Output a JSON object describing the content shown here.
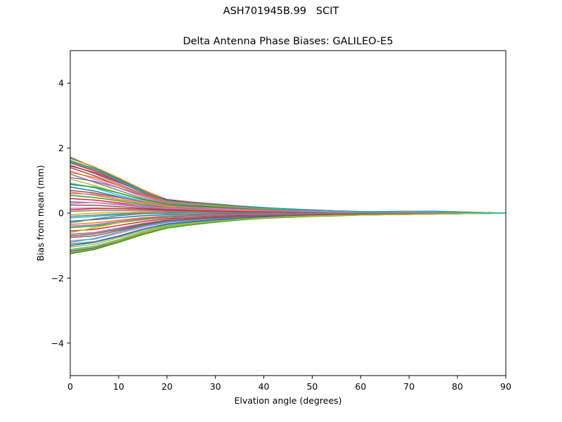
{
  "figure": {
    "suptitle": "ASH701945B.99   SCIT"
  },
  "chart_data": {
    "type": "line",
    "title": "Delta Antenna Phase Biases: GALILEO-E5",
    "xlabel": "Elvation angle (degrees)",
    "ylabel": "Bias from mean (mm)",
    "xlim": [
      0,
      90
    ],
    "ylim": [
      -5,
      5
    ],
    "xticks": [
      0,
      10,
      20,
      30,
      40,
      50,
      60,
      70,
      80,
      90
    ],
    "yticks": [
      -4,
      -2,
      0,
      2,
      4
    ],
    "ytick_labels": [
      "−4",
      "−2",
      "0",
      "2",
      "4"
    ],
    "grid": false,
    "legend": "none",
    "colors": [
      "#1f77b4",
      "#ff7f0e",
      "#2ca02c",
      "#d62728",
      "#9467bd",
      "#8c564b",
      "#e377c2",
      "#7f7f7f",
      "#bcbd22",
      "#17becf"
    ],
    "x": [
      0,
      5,
      10,
      15,
      20,
      25,
      30,
      35,
      40,
      45,
      50,
      55,
      60,
      65,
      70,
      75,
      80,
      85,
      90
    ],
    "series": [
      {
        "values": [
          1.72,
          1.4,
          1.05,
          0.7,
          0.42,
          0.34,
          0.28,
          0.22,
          0.17,
          0.13,
          0.1,
          0.07,
          0.05,
          0.05,
          0.06,
          0.06,
          0.04,
          0.02,
          0.0
        ]
      },
      {
        "values": [
          1.68,
          1.42,
          1.08,
          0.72,
          0.4,
          0.33,
          0.27,
          0.21,
          0.16,
          0.12,
          0.09,
          0.07,
          0.05,
          0.05,
          0.06,
          0.05,
          0.04,
          0.02,
          0.0
        ]
      },
      {
        "values": [
          1.62,
          1.36,
          1.02,
          0.66,
          0.38,
          0.31,
          0.26,
          0.2,
          0.16,
          0.12,
          0.09,
          0.06,
          0.04,
          0.05,
          0.05,
          0.05,
          0.03,
          0.01,
          0.0
        ]
      },
      {
        "values": [
          1.55,
          1.3,
          0.98,
          0.62,
          0.36,
          0.3,
          0.24,
          0.19,
          0.15,
          0.11,
          0.08,
          0.06,
          0.04,
          0.04,
          0.05,
          0.05,
          0.03,
          0.01,
          0.0
        ]
      },
      {
        "values": [
          1.48,
          1.22,
          0.9,
          0.58,
          0.34,
          0.28,
          0.23,
          0.18,
          0.14,
          0.1,
          0.08,
          0.06,
          0.04,
          0.04,
          0.05,
          0.04,
          0.03,
          0.01,
          0.0
        ]
      },
      {
        "values": [
          1.4,
          1.15,
          0.85,
          0.55,
          0.32,
          0.27,
          0.22,
          0.17,
          0.13,
          0.1,
          0.07,
          0.05,
          0.03,
          0.04,
          0.04,
          0.04,
          0.03,
          0.01,
          0.0
        ]
      },
      {
        "values": [
          1.3,
          1.05,
          0.78,
          0.5,
          0.3,
          0.25,
          0.2,
          0.16,
          0.12,
          0.09,
          0.07,
          0.05,
          0.03,
          0.03,
          0.04,
          0.04,
          0.02,
          0.01,
          0.0
        ]
      },
      {
        "values": [
          1.2,
          0.95,
          0.7,
          0.45,
          0.28,
          0.23,
          0.19,
          0.15,
          0.11,
          0.08,
          0.06,
          0.04,
          0.03,
          0.03,
          0.04,
          0.03,
          0.02,
          0.01,
          0.0
        ]
      },
      {
        "values": [
          1.05,
          0.85,
          0.62,
          0.4,
          0.25,
          0.21,
          0.17,
          0.13,
          0.1,
          0.08,
          0.06,
          0.04,
          0.03,
          0.03,
          0.03,
          0.03,
          0.02,
          0.01,
          0.0
        ]
      },
      {
        "values": [
          0.92,
          0.78,
          0.55,
          0.36,
          0.22,
          0.19,
          0.15,
          0.12,
          0.09,
          0.07,
          0.05,
          0.04,
          0.02,
          0.03,
          0.03,
          0.03,
          0.02,
          0.01,
          0.0
        ]
      },
      {
        "values": [
          0.8,
          0.68,
          0.5,
          0.33,
          0.2,
          0.17,
          0.14,
          0.11,
          0.08,
          0.06,
          0.05,
          0.03,
          0.02,
          0.02,
          0.03,
          0.02,
          0.02,
          0.0,
          0.0
        ]
      },
      {
        "values": [
          0.65,
          0.55,
          0.42,
          0.3,
          0.18,
          0.15,
          0.12,
          0.1,
          0.07,
          0.06,
          0.04,
          0.03,
          0.02,
          0.02,
          0.02,
          0.02,
          0.01,
          0.0,
          0.0
        ]
      },
      {
        "values": [
          0.55,
          0.48,
          0.38,
          0.26,
          0.16,
          0.14,
          0.11,
          0.09,
          0.07,
          0.05,
          0.04,
          0.03,
          0.02,
          0.02,
          0.02,
          0.02,
          0.01,
          0.0,
          0.0
        ]
      },
      {
        "values": [
          0.45,
          0.4,
          0.32,
          0.22,
          0.14,
          0.12,
          0.1,
          0.08,
          0.06,
          0.05,
          0.04,
          0.02,
          0.01,
          0.02,
          0.02,
          0.02,
          0.01,
          0.0,
          0.0
        ]
      },
      {
        "values": [
          0.35,
          0.32,
          0.26,
          0.19,
          0.12,
          0.1,
          0.08,
          0.07,
          0.05,
          0.04,
          0.03,
          0.02,
          0.01,
          0.01,
          0.02,
          0.01,
          0.01,
          0.0,
          0.0
        ]
      },
      {
        "values": [
          0.25,
          0.24,
          0.2,
          0.15,
          0.1,
          0.09,
          0.07,
          0.06,
          0.04,
          0.03,
          0.03,
          0.02,
          0.01,
          0.01,
          0.01,
          0.01,
          0.01,
          0.0,
          0.0
        ]
      },
      {
        "values": [
          0.15,
          0.16,
          0.14,
          0.11,
          0.08,
          0.07,
          0.06,
          0.05,
          0.04,
          0.03,
          0.02,
          0.01,
          0.01,
          0.01,
          0.01,
          0.01,
          0.0,
          0.0,
          0.0
        ]
      },
      {
        "values": [
          0.05,
          0.08,
          0.09,
          0.07,
          0.05,
          0.05,
          0.04,
          0.03,
          0.03,
          0.02,
          0.02,
          0.01,
          0.0,
          0.01,
          0.01,
          0.01,
          0.0,
          0.0,
          0.0
        ]
      },
      {
        "values": [
          -0.05,
          0.0,
          0.03,
          0.03,
          0.02,
          0.02,
          0.02,
          0.02,
          0.01,
          0.01,
          0.01,
          0.0,
          0.0,
          0.0,
          0.0,
          0.0,
          0.0,
          0.0,
          0.0
        ]
      },
      {
        "values": [
          -0.15,
          -0.1,
          -0.05,
          -0.02,
          -0.01,
          0.0,
          0.0,
          0.0,
          0.0,
          0.0,
          0.0,
          0.0,
          -0.01,
          0.0,
          0.0,
          0.0,
          0.0,
          0.0,
          0.0
        ]
      },
      {
        "values": [
          -0.25,
          -0.2,
          -0.14,
          -0.08,
          -0.05,
          -0.04,
          -0.03,
          -0.02,
          -0.02,
          -0.01,
          -0.01,
          -0.01,
          -0.01,
          -0.01,
          0.0,
          0.0,
          0.0,
          0.0,
          0.0
        ]
      },
      {
        "values": [
          -0.35,
          -0.3,
          -0.22,
          -0.14,
          -0.09,
          -0.07,
          -0.05,
          -0.04,
          -0.03,
          -0.03,
          -0.02,
          -0.02,
          -0.02,
          -0.01,
          -0.01,
          -0.01,
          0.0,
          0.0,
          0.0
        ]
      },
      {
        "values": [
          -0.45,
          -0.4,
          -0.3,
          -0.2,
          -0.13,
          -0.1,
          -0.08,
          -0.06,
          -0.05,
          -0.04,
          -0.03,
          -0.03,
          -0.02,
          -0.02,
          -0.01,
          -0.01,
          -0.01,
          0.0,
          0.0
        ]
      },
      {
        "values": [
          -0.55,
          -0.5,
          -0.38,
          -0.26,
          -0.17,
          -0.14,
          -0.11,
          -0.08,
          -0.06,
          -0.05,
          -0.04,
          -0.03,
          -0.03,
          -0.02,
          -0.02,
          -0.01,
          -0.01,
          0.0,
          0.0
        ]
      },
      {
        "values": [
          -0.65,
          -0.6,
          -0.46,
          -0.32,
          -0.21,
          -0.17,
          -0.13,
          -0.1,
          -0.08,
          -0.06,
          -0.05,
          -0.04,
          -0.03,
          -0.03,
          -0.02,
          -0.02,
          -0.01,
          0.0,
          0.0
        ]
      },
      {
        "values": [
          -0.75,
          -0.7,
          -0.54,
          -0.38,
          -0.25,
          -0.2,
          -0.16,
          -0.12,
          -0.09,
          -0.07,
          -0.06,
          -0.05,
          -0.04,
          -0.03,
          -0.02,
          -0.02,
          -0.01,
          -0.01,
          0.0
        ]
      },
      {
        "values": [
          -0.85,
          -0.8,
          -0.62,
          -0.43,
          -0.29,
          -0.23,
          -0.18,
          -0.14,
          -0.11,
          -0.08,
          -0.07,
          -0.05,
          -0.04,
          -0.04,
          -0.03,
          -0.02,
          -0.01,
          -0.01,
          0.0
        ]
      },
      {
        "values": [
          -0.95,
          -0.88,
          -0.7,
          -0.49,
          -0.33,
          -0.26,
          -0.2,
          -0.15,
          -0.12,
          -0.09,
          -0.07,
          -0.06,
          -0.05,
          -0.04,
          -0.03,
          -0.02,
          -0.02,
          -0.01,
          0.0
        ]
      },
      {
        "values": [
          -1.05,
          -0.96,
          -0.76,
          -0.54,
          -0.37,
          -0.29,
          -0.22,
          -0.17,
          -0.13,
          -0.1,
          -0.08,
          -0.06,
          -0.05,
          -0.04,
          -0.03,
          -0.02,
          -0.02,
          -0.01,
          0.0
        ]
      },
      {
        "values": [
          -1.12,
          -1.02,
          -0.82,
          -0.58,
          -0.4,
          -0.31,
          -0.24,
          -0.18,
          -0.14,
          -0.11,
          -0.09,
          -0.07,
          -0.05,
          -0.05,
          -0.04,
          -0.03,
          -0.02,
          -0.01,
          0.0
        ]
      },
      {
        "values": [
          -1.18,
          -1.07,
          -0.86,
          -0.62,
          -0.43,
          -0.33,
          -0.25,
          -0.19,
          -0.15,
          -0.12,
          -0.09,
          -0.07,
          -0.06,
          -0.05,
          -0.04,
          -0.03,
          -0.02,
          -0.01,
          0.0
        ]
      },
      {
        "values": [
          -1.22,
          -1.1,
          -0.88,
          -0.64,
          -0.45,
          -0.35,
          -0.27,
          -0.2,
          -0.16,
          -0.12,
          -0.1,
          -0.08,
          -0.06,
          -0.05,
          -0.04,
          -0.03,
          -0.02,
          -0.01,
          0.0
        ]
      },
      {
        "values": [
          -1.25,
          -1.12,
          -0.9,
          -0.66,
          -0.46,
          -0.36,
          -0.28,
          -0.21,
          -0.16,
          -0.13,
          -0.1,
          -0.08,
          -0.06,
          -0.05,
          -0.04,
          -0.03,
          -0.02,
          -0.01,
          0.0
        ]
      },
      {
        "values": [
          1.45,
          1.25,
          0.95,
          0.65,
          0.4,
          0.32,
          0.26,
          0.2,
          0.15,
          0.11,
          0.08,
          0.06,
          0.04,
          0.04,
          0.05,
          0.05,
          0.03,
          0.01,
          0.0
        ]
      },
      {
        "values": [
          1.1,
          0.98,
          0.78,
          0.54,
          0.33,
          0.27,
          0.21,
          0.16,
          0.12,
          0.09,
          0.07,
          0.05,
          0.03,
          0.03,
          0.04,
          0.04,
          0.02,
          0.01,
          0.0
        ]
      },
      {
        "values": [
          0.7,
          0.62,
          0.48,
          0.34,
          0.22,
          0.18,
          0.14,
          0.11,
          0.08,
          0.06,
          0.05,
          0.03,
          0.02,
          0.02,
          0.03,
          0.02,
          0.01,
          0.0,
          0.0
        ]
      },
      {
        "values": [
          0.3,
          0.32,
          0.28,
          0.22,
          0.15,
          0.12,
          0.1,
          0.08,
          0.06,
          0.05,
          0.04,
          0.03,
          0.02,
          0.02,
          0.02,
          0.01,
          0.01,
          0.0,
          0.0
        ]
      },
      {
        "values": [
          -0.3,
          -0.18,
          -0.08,
          -0.02,
          0.01,
          0.01,
          0.01,
          0.01,
          0.0,
          0.0,
          0.0,
          0.0,
          0.0,
          0.0,
          0.0,
          0.0,
          0.0,
          0.0,
          0.0
        ]
      },
      {
        "values": [
          -0.6,
          -0.45,
          -0.3,
          -0.18,
          -0.11,
          -0.09,
          -0.07,
          -0.05,
          -0.04,
          -0.03,
          -0.03,
          -0.02,
          -0.02,
          -0.01,
          -0.01,
          -0.01,
          0.0,
          0.0,
          0.0
        ]
      },
      {
        "values": [
          -0.9,
          -0.78,
          -0.58,
          -0.4,
          -0.27,
          -0.21,
          -0.16,
          -0.12,
          -0.09,
          -0.07,
          -0.06,
          -0.05,
          -0.04,
          -0.03,
          -0.02,
          -0.02,
          -0.01,
          -0.01,
          0.0
        ]
      },
      {
        "values": [
          -1.0,
          -0.9,
          -0.72,
          -0.5,
          -0.34,
          -0.27,
          -0.21,
          -0.16,
          -0.12,
          -0.09,
          -0.07,
          -0.06,
          -0.05,
          -0.04,
          -0.03,
          -0.02,
          -0.02,
          -0.01,
          0.0
        ]
      },
      {
        "values": [
          1.25,
          1.1,
          0.84,
          0.56,
          0.34,
          0.28,
          0.22,
          0.17,
          0.13,
          0.1,
          0.07,
          0.05,
          0.03,
          0.04,
          0.04,
          0.04,
          0.02,
          0.01,
          0.0
        ]
      },
      {
        "values": [
          0.88,
          0.8,
          0.62,
          0.42,
          0.27,
          0.22,
          0.18,
          0.14,
          0.1,
          0.08,
          0.06,
          0.04,
          0.03,
          0.03,
          0.03,
          0.03,
          0.02,
          0.01,
          0.0
        ]
      },
      {
        "values": [
          0.1,
          0.14,
          0.14,
          0.12,
          0.09,
          0.08,
          0.06,
          0.05,
          0.04,
          0.03,
          0.02,
          0.02,
          0.01,
          0.01,
          0.01,
          0.01,
          0.0,
          0.0,
          0.0
        ]
      },
      {
        "values": [
          -0.4,
          -0.36,
          -0.26,
          -0.17,
          -0.11,
          -0.09,
          -0.07,
          -0.05,
          -0.04,
          -0.03,
          -0.02,
          -0.02,
          -0.02,
          -0.01,
          -0.01,
          -0.01,
          0.0,
          0.0,
          0.0
        ]
      },
      {
        "values": [
          -0.7,
          -0.64,
          -0.5,
          -0.35,
          -0.23,
          -0.19,
          -0.15,
          -0.11,
          -0.09,
          -0.07,
          -0.05,
          -0.04,
          -0.03,
          -0.03,
          -0.02,
          -0.02,
          -0.01,
          0.0,
          0.0
        ]
      },
      {
        "values": [
          0.6,
          0.58,
          0.47,
          0.33,
          0.21,
          0.17,
          0.14,
          0.11,
          0.08,
          0.06,
          0.05,
          0.03,
          0.02,
          0.02,
          0.03,
          0.02,
          0.01,
          0.0,
          0.0
        ]
      },
      {
        "values": [
          -0.1,
          -0.06,
          -0.02,
          0.0,
          0.01,
          0.01,
          0.01,
          0.01,
          0.01,
          0.0,
          0.0,
          0.0,
          0.0,
          0.0,
          0.0,
          0.0,
          0.0,
          0.0,
          0.0
        ]
      },
      {
        "values": [
          -1.15,
          -1.04,
          -0.84,
          -0.6,
          -0.42,
          -0.32,
          -0.25,
          -0.19,
          -0.15,
          -0.11,
          -0.09,
          -0.07,
          -0.06,
          -0.05,
          -0.04,
          -0.03,
          -0.02,
          -0.01,
          0.0
        ]
      },
      {
        "values": [
          1.58,
          1.34,
          1.0,
          0.64,
          0.37,
          0.3,
          0.25,
          0.19,
          0.15,
          0.11,
          0.08,
          0.06,
          0.04,
          0.04,
          0.05,
          0.05,
          0.03,
          0.01,
          0.0
        ]
      }
    ]
  }
}
